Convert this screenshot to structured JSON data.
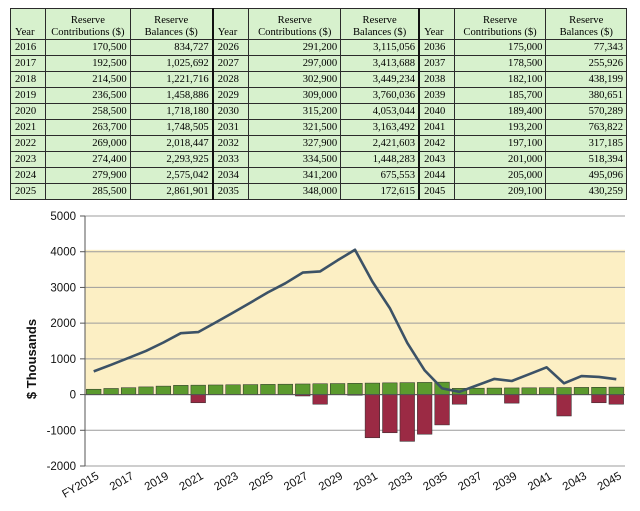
{
  "table": {
    "headers": {
      "year": "Year",
      "contrib": [
        "Reserve",
        "Contributions ($)"
      ],
      "balance": [
        "Reserve",
        "Balances ($)"
      ]
    },
    "groups": [
      [
        [
          "2016",
          "170,500",
          "834,727"
        ],
        [
          "2017",
          "192,500",
          "1,025,692"
        ],
        [
          "2018",
          "214,500",
          "1,221,716"
        ],
        [
          "2019",
          "236,500",
          "1,458,886"
        ],
        [
          "2020",
          "258,500",
          "1,718,180"
        ],
        [
          "2021",
          "263,700",
          "1,748,505"
        ],
        [
          "2022",
          "269,000",
          "2,018,447"
        ],
        [
          "2023",
          "274,400",
          "2,293,925"
        ],
        [
          "2024",
          "279,900",
          "2,575,042"
        ],
        [
          "2025",
          "285,500",
          "2,861,901"
        ]
      ],
      [
        [
          "2026",
          "291,200",
          "3,115,056"
        ],
        [
          "2027",
          "297,000",
          "3,413,688"
        ],
        [
          "2028",
          "302,900",
          "3,449,234"
        ],
        [
          "2029",
          "309,000",
          "3,760,036"
        ],
        [
          "2030",
          "315,200",
          "4,053,044"
        ],
        [
          "2031",
          "321,500",
          "3,163,492"
        ],
        [
          "2032",
          "327,900",
          "2,421,603"
        ],
        [
          "2033",
          "334,500",
          "1,448,283"
        ],
        [
          "2034",
          "341,200",
          "675,553"
        ],
        [
          "2035",
          "348,000",
          "172,615"
        ]
      ],
      [
        [
          "2036",
          "175,000",
          "77,343"
        ],
        [
          "2037",
          "178,500",
          "255,926"
        ],
        [
          "2038",
          "182,100",
          "438,199"
        ],
        [
          "2039",
          "185,700",
          "380,651"
        ],
        [
          "2040",
          "189,400",
          "570,289"
        ],
        [
          "2041",
          "193,200",
          "763,822"
        ],
        [
          "2042",
          "197,100",
          "317,185"
        ],
        [
          "2043",
          "201,000",
          "518,394"
        ],
        [
          "2044",
          "205,000",
          "495,096"
        ],
        [
          "2045",
          "209,100",
          "430,259"
        ]
      ]
    ]
  },
  "chart_data": {
    "type": "bar",
    "ylabel": "$ Thousands",
    "ylim": [
      -2000,
      5000
    ],
    "yticks": [
      "5000",
      "4000",
      "3000",
      "2000",
      "1000",
      "0",
      "-1000",
      "-2000"
    ],
    "categories": [
      "FY2015",
      "2016",
      "2017",
      "2018",
      "2019",
      "2020",
      "2021",
      "2022",
      "2023",
      "2024",
      "2025",
      "2026",
      "2027",
      "2028",
      "2029",
      "2030",
      "2031",
      "2032",
      "2033",
      "2034",
      "2035",
      "2036",
      "2037",
      "2038",
      "2039",
      "2040",
      "2041",
      "2042",
      "2043",
      "2044",
      "2045"
    ],
    "xtick_labels": [
      "FY2015",
      "2017",
      "2019",
      "2021",
      "2023",
      "2025",
      "2027",
      "2029",
      "2031",
      "2033",
      "2035",
      "2037",
      "2039",
      "2041",
      "2043",
      "2045"
    ],
    "band": {
      "from": 0,
      "to": 4053,
      "color": "#fcefc4"
    },
    "series": [
      {
        "kind": "bar",
        "color": "#5b9a2e",
        "values": [
          150,
          171,
          193,
          215,
          237,
          259,
          264,
          269,
          274,
          280,
          286,
          291,
          297,
          303,
          309,
          315,
          322,
          328,
          335,
          341,
          348,
          175,
          179,
          182,
          186,
          189,
          193,
          197,
          201,
          205,
          209
        ]
      },
      {
        "kind": "bar",
        "color": "#9b2a44",
        "values": [
          0,
          0,
          0,
          0,
          0,
          0,
          -230,
          0,
          0,
          0,
          0,
          0,
          -40,
          -270,
          0,
          -20,
          -1210,
          -1070,
          -1310,
          -1110,
          -850,
          -270,
          0,
          0,
          -240,
          0,
          0,
          -600,
          0,
          -230,
          -270
        ]
      },
      {
        "kind": "line",
        "color": "#3c5266",
        "values": [
          650,
          835,
          1026,
          1222,
          1459,
          1718,
          1749,
          2018,
          2294,
          2575,
          2862,
          3115,
          3414,
          3449,
          3760,
          4053,
          3163,
          2422,
          1448,
          676,
          173,
          77,
          256,
          438,
          381,
          570,
          764,
          317,
          518,
          495,
          430
        ]
      }
    ]
  }
}
